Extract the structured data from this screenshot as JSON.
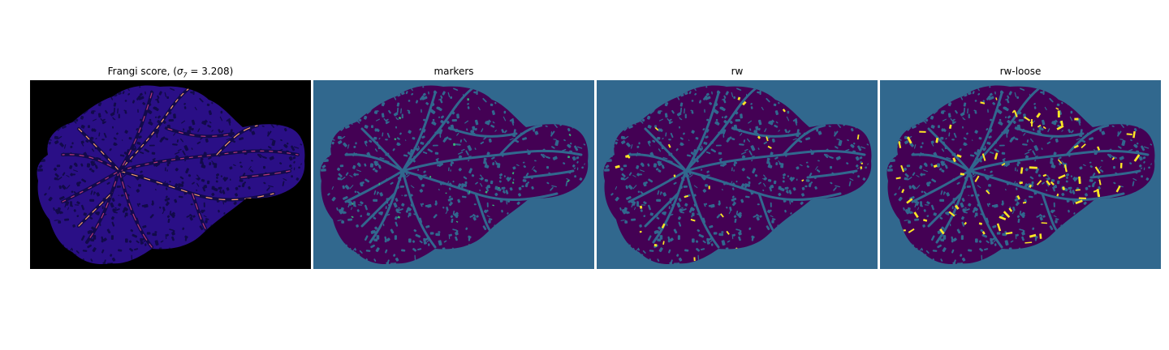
{
  "figure": {
    "panels": [
      {
        "title_prefix": "Frangi score, (",
        "title_symbol": "σ",
        "title_subscript": "7",
        "title_value": " = 3.208)",
        "colormap": "magma"
      },
      {
        "title": "markers",
        "colormap": "viridis"
      },
      {
        "title": "rw",
        "colormap": "viridis"
      },
      {
        "title": "rw-loose",
        "colormap": "viridis"
      }
    ]
  },
  "colors": {
    "frangi_background": "#000000",
    "frangi_tissue": "#2a0f86",
    "frangi_edge_low": "#120a4a",
    "frangi_vessel_mid": "#b73779",
    "frangi_vessel_high": "#fc9f6a",
    "label_background": "#31688e",
    "label_tissue": "#440154",
    "label_vessel": "#31688e",
    "label_marker": "#35b779",
    "label_segment": "#fde725"
  }
}
